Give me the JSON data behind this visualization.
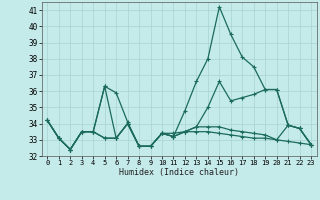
{
  "xlabel": "Humidex (Indice chaleur)",
  "xlim": [
    -0.5,
    23.5
  ],
  "ylim": [
    32,
    41.5
  ],
  "yticks": [
    32,
    33,
    34,
    35,
    36,
    37,
    38,
    39,
    40,
    41
  ],
  "xticks": [
    0,
    1,
    2,
    3,
    4,
    5,
    6,
    7,
    8,
    9,
    10,
    11,
    12,
    13,
    14,
    15,
    16,
    17,
    18,
    19,
    20,
    21,
    22,
    23
  ],
  "bg_color": "#c5eaea",
  "line_color": "#1a6b5a",
  "grid_color": "#a8d4d4",
  "lines": [
    [
      34.2,
      33.1,
      32.4,
      33.5,
      33.5,
      36.3,
      35.9,
      34.1,
      32.6,
      32.6,
      33.4,
      33.4,
      33.5,
      33.5,
      33.5,
      33.4,
      33.3,
      33.2,
      33.1,
      33.1,
      33.0,
      32.9,
      32.8,
      32.7
    ],
    [
      34.2,
      33.1,
      32.4,
      33.5,
      33.5,
      36.3,
      33.1,
      34.0,
      32.6,
      32.6,
      33.4,
      33.2,
      34.8,
      36.6,
      38.0,
      41.2,
      39.5,
      38.1,
      37.5,
      36.1,
      36.1,
      33.9,
      33.7,
      32.7
    ],
    [
      34.2,
      33.1,
      32.4,
      33.5,
      33.5,
      33.1,
      33.1,
      34.0,
      32.6,
      32.6,
      33.4,
      33.2,
      33.5,
      33.8,
      35.0,
      36.6,
      35.4,
      35.6,
      35.8,
      36.1,
      36.1,
      33.9,
      33.7,
      32.7
    ],
    [
      34.2,
      33.1,
      32.4,
      33.5,
      33.5,
      33.1,
      33.1,
      34.0,
      32.6,
      32.6,
      33.4,
      33.2,
      33.5,
      33.8,
      33.8,
      33.8,
      33.6,
      33.5,
      33.4,
      33.3,
      33.0,
      33.9,
      33.7,
      32.7
    ]
  ]
}
